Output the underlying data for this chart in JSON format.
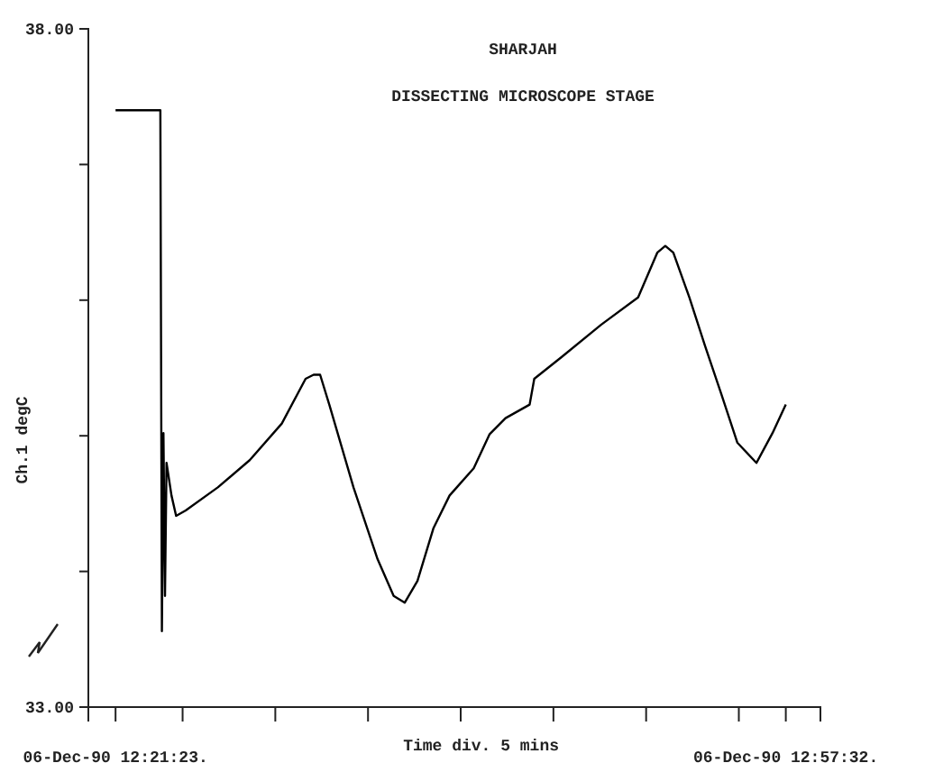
{
  "chart_data": {
    "type": "line",
    "title": "SHARJAH",
    "subtitle": "DISSECTING MICROSCOPE STAGE",
    "xlabel": "Time div. 5 mins",
    "ylabel": "Ch.1  degC",
    "x": [
      "1990-12-06T12:21:23",
      "1990-12-06T12:23:42",
      "1990-12-06T12:23:48",
      "1990-12-06T12:23:53",
      "1990-12-06T12:23:58",
      "1990-12-06T12:24:03",
      "1990-12-06T12:24:08",
      "1990-12-06T12:24:24",
      "1990-12-06T12:24:39",
      "1990-12-06T12:25:10",
      "1990-12-06T12:26:54",
      "1990-12-06T12:28:37",
      "1990-12-06T12:30:21",
      "1990-12-06T12:31:38",
      "1990-12-06T12:32:04",
      "1990-12-06T12:32:25",
      "1990-12-06T12:32:56",
      "1990-12-06T12:34:13",
      "1990-12-06T12:35:31",
      "1990-12-06T12:36:23",
      "1990-12-06T12:36:59",
      "1990-12-06T12:37:40",
      "1990-12-06T12:38:32",
      "1990-12-06T12:39:24",
      "1990-12-06T12:40:42",
      "1990-12-06T12:41:33",
      "1990-12-06T12:42:25",
      "1990-12-06T12:43:43",
      "1990-12-06T12:43:58",
      "1990-12-06T12:45:26",
      "1990-12-06T12:47:35",
      "1990-12-06T12:49:34",
      "1990-12-06T12:50:36",
      "1990-12-06T12:51:02",
      "1990-12-06T12:51:28",
      "1990-12-06T12:52:20",
      "1990-12-06T12:53:11",
      "1990-12-06T12:54:03",
      "1990-12-06T12:54:55",
      "1990-12-06T12:55:57",
      "1990-12-06T12:56:49",
      "1990-12-06T12:57:32"
    ],
    "series": [
      {
        "color": "#000000",
        "values": [
          37.4,
          37.4,
          37.4,
          33.56,
          35.02,
          33.82,
          34.8,
          34.56,
          34.41,
          34.45,
          34.62,
          34.82,
          35.09,
          35.42,
          35.45,
          35.45,
          35.22,
          34.62,
          34.09,
          33.82,
          33.77,
          33.93,
          34.32,
          34.56,
          34.76,
          35.01,
          35.13,
          35.23,
          35.42,
          35.58,
          35.82,
          36.02,
          36.35,
          36.4,
          36.35,
          36.02,
          35.66,
          35.31,
          34.95,
          34.8,
          35.02,
          35.23
        ]
      }
    ],
    "xlim": [
      "1990-12-06T12:19:55",
      "1990-12-06T12:59:24"
    ],
    "xticks": [
      {
        "value": "1990-12-06T12:21:23",
        "label": "06-Dec-90 12:21:23."
      },
      {
        "value": "1990-12-06T12:25:00",
        "label": null
      },
      {
        "value": "1990-12-06T12:30:00",
        "label": null
      },
      {
        "value": "1990-12-06T12:35:00",
        "label": null
      },
      {
        "value": "1990-12-06T12:40:00",
        "label": null
      },
      {
        "value": "1990-12-06T12:45:00",
        "label": null
      },
      {
        "value": "1990-12-06T12:50:00",
        "label": null
      },
      {
        "value": "1990-12-06T12:55:00",
        "label": null
      },
      {
        "value": "1990-12-06T12:57:32",
        "label": "06-Dec-90 12:57:32."
      }
    ],
    "ylim": [
      33,
      38
    ],
    "yticks": [
      {
        "value": 33,
        "label": "33.00"
      },
      {
        "value": 34,
        "label": null
      },
      {
        "value": 35,
        "label": null
      },
      {
        "value": 36,
        "label": null
      },
      {
        "value": 37,
        "label": null
      },
      {
        "value": 38,
        "label": "38.00"
      }
    ],
    "grid": false,
    "marker": "none",
    "line_style": "solid"
  }
}
